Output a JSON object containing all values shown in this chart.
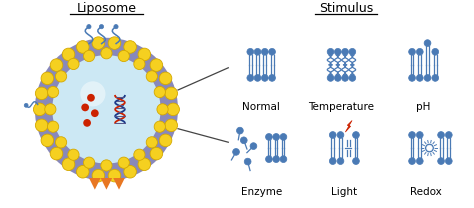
{
  "title_liposome": "Liposome",
  "title_stimulus": "Stimulus",
  "labels_top": [
    "Normal",
    "Temperature",
    "pH"
  ],
  "labels_bottom": [
    "Enzyme",
    "Light",
    "Redox"
  ],
  "bg_color": "#ffffff",
  "lipid_color": "#4a7ab5",
  "yellow_head_color": "#f5d020",
  "yellow_head_edge": "#d4a800",
  "purple_ring_color": "#8888bb",
  "light_blue_fill": "#cce8f4",
  "red_color": "#cc2200",
  "orange_color": "#e87722",
  "arrow_color": "#444444",
  "figsize": [
    4.74,
    2.08
  ],
  "dpi": 100
}
